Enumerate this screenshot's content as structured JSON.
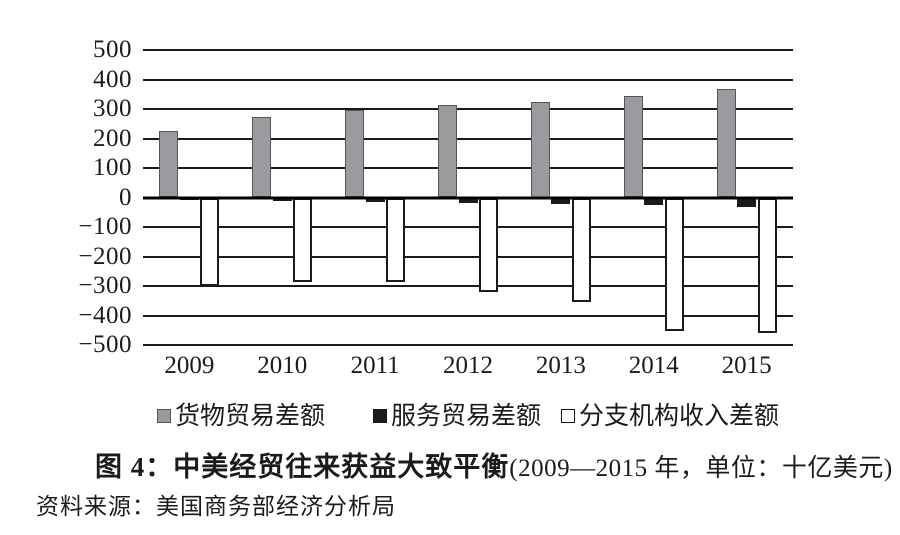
{
  "chart_data": {
    "type": "bar",
    "title": "图 4：中美经贸往来获益大致平衡",
    "title_note": "(2009—2015 年，单位：十亿美元)",
    "source_note": "资料来源：美国商务部经济分析局",
    "categories": [
      "2009",
      "2010",
      "2011",
      "2012",
      "2013",
      "2014",
      "2015"
    ],
    "series": [
      {
        "key": "goods",
        "name": "货物贸易差额",
        "color": "#9b9b9f",
        "border_color": "#55555a",
        "border_px": 1,
        "values": [
          227,
          273,
          296,
          315,
          325,
          345,
          367
        ]
      },
      {
        "key": "services",
        "name": "服务贸易差额",
        "color": "#1b1b1b",
        "border_color": "#1b1b1b",
        "border_px": 0,
        "values": [
          -7,
          -11,
          -15,
          -19,
          -21,
          -27,
          -33
        ]
      },
      {
        "key": "branch",
        "name": "分支机构收入差额",
        "color": "#ffffff",
        "border_color": "#1b1b1b",
        "border_px": 2,
        "values": [
          -299,
          -285,
          -288,
          -320,
          -353,
          -452,
          -459
        ]
      }
    ],
    "xlabel": "",
    "ylabel": "",
    "ylim": [
      -500,
      500
    ],
    "y_ticks": [
      "500",
      "400",
      "300",
      "200",
      "100",
      "0",
      "−100",
      "−200",
      "−300",
      "−400",
      "−500"
    ],
    "grid": true,
    "legend_position": "bottom",
    "axis_color": "#1b1b1b",
    "background_color": "#ffffff"
  }
}
